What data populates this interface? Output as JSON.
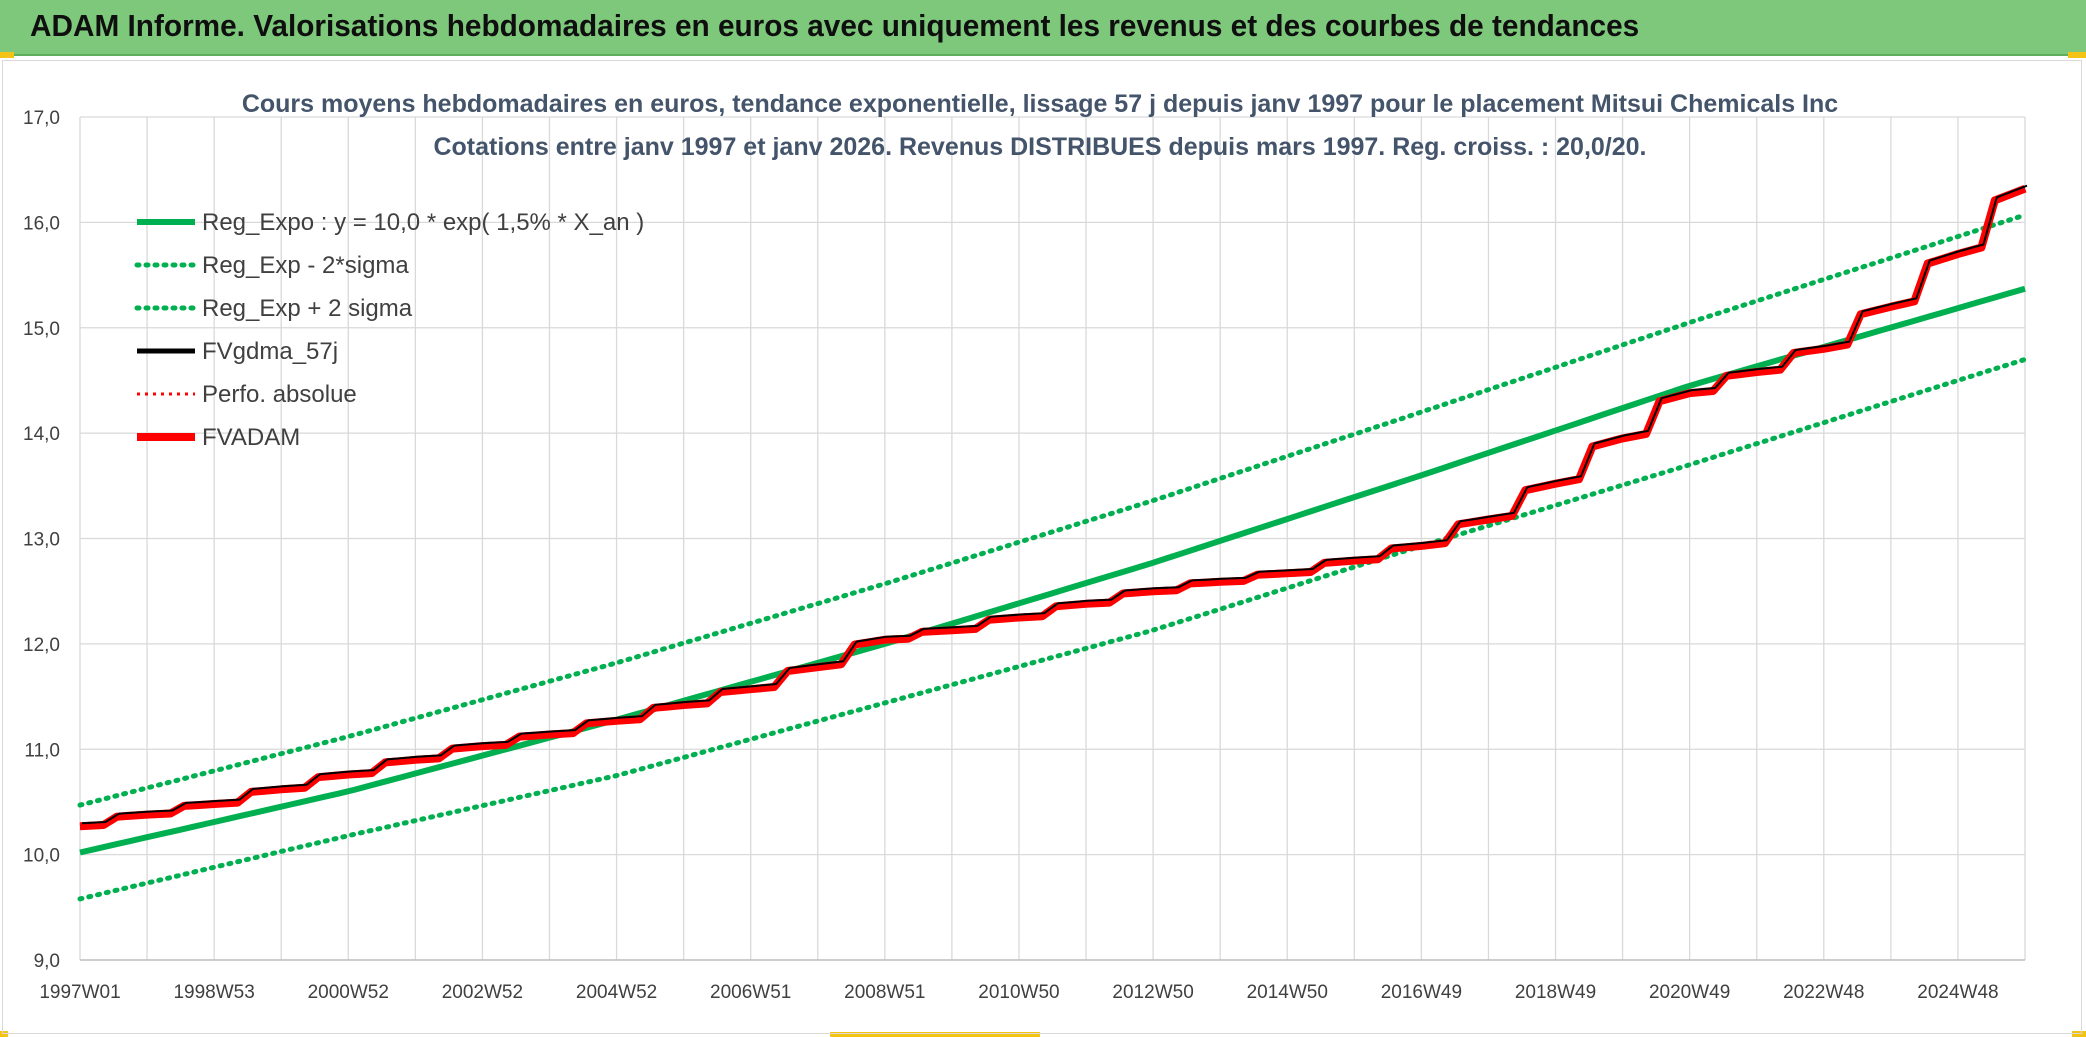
{
  "banner": {
    "title": "ADAM Informe. Valorisations hebdomadaires en euros avec uniquement les revenus et des courbes de tendances"
  },
  "chart_data": {
    "type": "line",
    "title": "Cours moyens hebdomadaires en euros, tendance exponentielle, lissage 57 j depuis janv 1997 pour le placement Mitsui Chemicals Inc",
    "subtitle": "Cotations entre janv 1997 et janv 2026. Revenus DISTRIBUES depuis mars 1997. Reg. croiss. : 20,0/20.",
    "xlabel": "",
    "ylabel": "",
    "ylim": [
      9.0,
      17.0
    ],
    "y_ticks": [
      "9,0",
      "10,0",
      "11,0",
      "12,0",
      "13,0",
      "14,0",
      "15,0",
      "16,0",
      "17,0"
    ],
    "x_ticks": [
      "1997W01",
      "1998W53",
      "2000W52",
      "2002W52",
      "2004W52",
      "2006W51",
      "2008W51",
      "2010W50",
      "2012W50",
      "2014W50",
      "2016W49",
      "2018W49",
      "2020W49",
      "2022W48",
      "2024W48"
    ],
    "x_range_years": [
      1997.0,
      2026.0
    ],
    "grid": true,
    "legend_position": "top-left",
    "series": [
      {
        "name": "Reg_Expo : y = 10,0 * exp( 1,5% *  X_an )",
        "color": "#00b050",
        "style": "solid",
        "x": [
          1997.0,
          2001.0,
          2005.0,
          2009.0,
          2013.0,
          2017.0,
          2021.0,
          2026.0
        ],
        "values": [
          10.02,
          10.6,
          11.28,
          12.0,
          12.77,
          13.6,
          14.45,
          15.37
        ]
      },
      {
        "name": "Reg_Exp - 2*sigma",
        "color": "#00b050",
        "style": "dotted",
        "x": [
          1997.0,
          2001.0,
          2005.0,
          2009.0,
          2013.0,
          2017.0,
          2021.0,
          2026.0
        ],
        "values": [
          9.58,
          10.18,
          10.75,
          11.44,
          12.13,
          12.93,
          13.7,
          14.7
        ]
      },
      {
        "name": "Reg_Exp + 2 sigma",
        "color": "#00b050",
        "style": "dotted",
        "x": [
          1997.0,
          2001.0,
          2005.0,
          2009.0,
          2013.0,
          2017.0,
          2021.0,
          2026.0
        ],
        "values": [
          10.47,
          11.12,
          11.82,
          12.57,
          13.36,
          14.2,
          15.05,
          16.07
        ]
      },
      {
        "name": "FVgdma_57j",
        "color": "#000000",
        "style": "solid",
        "x": [
          1997.0,
          1998.0,
          1999.0,
          2000.0,
          2001.0,
          2002.0,
          2003.0,
          2004.0,
          2005.0,
          2006.0,
          2007.0,
          2008.0,
          2009.0,
          2010.0,
          2011.0,
          2012.0,
          2013.0,
          2014.0,
          2015.0,
          2016.0,
          2017.0,
          2018.0,
          2019.0,
          2020.0,
          2021.0,
          2022.0,
          2023.0,
          2024.0,
          2025.0,
          2026.0
        ],
        "values": [
          10.27,
          10.38,
          10.48,
          10.62,
          10.76,
          10.9,
          11.03,
          11.14,
          11.27,
          11.42,
          11.57,
          11.78,
          12.04,
          12.13,
          12.25,
          12.38,
          12.5,
          12.59,
          12.67,
          12.79,
          12.93,
          13.18,
          13.52,
          13.95,
          14.38,
          14.58,
          14.8,
          15.2,
          15.7,
          16.32
        ]
      },
      {
        "name": "Perfo. absolue",
        "color": "#ff0000",
        "style": "dotted",
        "x": [
          1997.0,
          1998.0,
          1999.0,
          2000.0,
          2001.0,
          2002.0,
          2003.0,
          2004.0,
          2005.0,
          2006.0,
          2007.0,
          2008.0,
          2009.0,
          2010.0,
          2011.0,
          2012.0,
          2013.0,
          2014.0,
          2015.0,
          2016.0,
          2017.0,
          2018.0,
          2019.0,
          2020.0,
          2021.0,
          2022.0,
          2023.0,
          2024.0,
          2025.0,
          2026.0
        ],
        "values": [
          10.27,
          10.38,
          10.48,
          10.62,
          10.76,
          10.9,
          11.03,
          11.14,
          11.27,
          11.42,
          11.57,
          11.78,
          12.04,
          12.13,
          12.25,
          12.38,
          12.5,
          12.59,
          12.67,
          12.79,
          12.93,
          13.18,
          13.52,
          13.95,
          14.38,
          14.58,
          14.8,
          15.2,
          15.7,
          16.32
        ]
      },
      {
        "name": "FVADAM",
        "color": "#ff0000",
        "style": "solid",
        "x": [
          1997.0,
          1998.0,
          1999.0,
          2000.0,
          2001.0,
          2002.0,
          2003.0,
          2004.0,
          2005.0,
          2006.0,
          2007.0,
          2008.0,
          2009.0,
          2010.0,
          2011.0,
          2012.0,
          2013.0,
          2014.0,
          2015.0,
          2016.0,
          2017.0,
          2018.0,
          2019.0,
          2020.0,
          2021.0,
          2022.0,
          2023.0,
          2024.0,
          2025.0,
          2026.0
        ],
        "values": [
          10.27,
          10.38,
          10.48,
          10.62,
          10.76,
          10.9,
          11.03,
          11.14,
          11.27,
          11.42,
          11.57,
          11.78,
          12.04,
          12.13,
          12.25,
          12.38,
          12.5,
          12.59,
          12.67,
          12.79,
          12.93,
          13.18,
          13.52,
          13.95,
          14.38,
          14.58,
          14.8,
          15.2,
          15.7,
          16.32
        ]
      }
    ]
  }
}
